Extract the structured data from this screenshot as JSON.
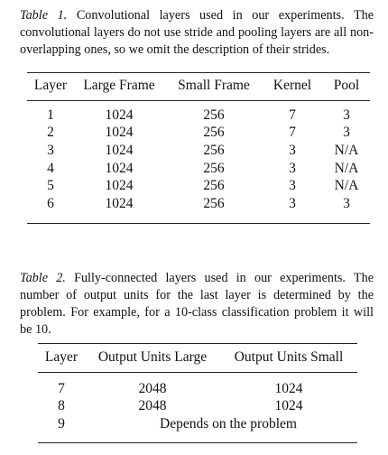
{
  "table1": {
    "label": "Table 1.",
    "caption": "Convolutional layers used in our experiments. The convolutional layers do not use stride and pooling layers are all non-overlapping ones, so we omit the description of their strides.",
    "columns": [
      "Layer",
      "Large Frame",
      "Small Frame",
      "Kernel",
      "Pool"
    ],
    "rows": [
      [
        "1",
        "1024",
        "256",
        "7",
        "3"
      ],
      [
        "2",
        "1024",
        "256",
        "7",
        "3"
      ],
      [
        "3",
        "1024",
        "256",
        "3",
        "N/A"
      ],
      [
        "4",
        "1024",
        "256",
        "3",
        "N/A"
      ],
      [
        "5",
        "1024",
        "256",
        "3",
        "N/A"
      ],
      [
        "6",
        "1024",
        "256",
        "3",
        "3"
      ]
    ]
  },
  "table2": {
    "label": "Table 2.",
    "caption": "Fully-connected layers used in our experiments. The number of output units for the last layer is determined by the problem. For example, for a 10-class classification problem it will be 10.",
    "columns": [
      "Layer",
      "Output Units Large",
      "Output Units Small"
    ],
    "rows": [
      [
        "7",
        "2048",
        "1024"
      ],
      [
        "8",
        "2048",
        "1024"
      ]
    ],
    "last_row": {
      "layer": "9",
      "value": "Depends on the problem"
    }
  }
}
